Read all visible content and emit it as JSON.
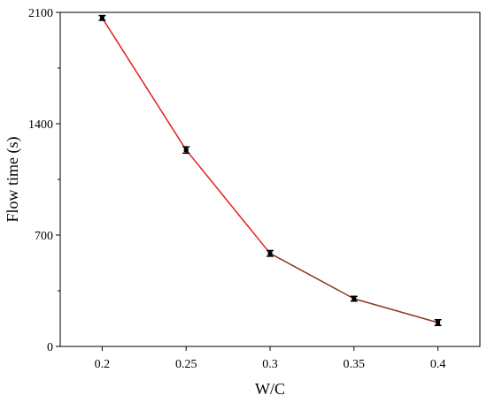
{
  "chart_data": {
    "type": "line",
    "xlabel": "W/C",
    "ylabel": "Flow time (s)",
    "x": [
      0.2,
      0.25,
      0.3,
      0.35,
      0.4
    ],
    "x_tick_labels": [
      "0.2",
      "0.25",
      "0.3",
      "0.35",
      "0.4"
    ],
    "xlim": [
      0.175,
      0.425
    ],
    "y_ticks": [
      0,
      700,
      1400,
      2100
    ],
    "ylim": [
      0,
      2100
    ],
    "grid": false,
    "series": [
      {
        "values": [
          2065,
          1235,
          585,
          300,
          150
        ],
        "errors": [
          15,
          20,
          18,
          15,
          18
        ],
        "line_colors": [
          "#e3201b",
          "#e3201b",
          "#8b3a1e",
          "#8b3a1e"
        ],
        "marker_color": "#000000"
      }
    ]
  }
}
